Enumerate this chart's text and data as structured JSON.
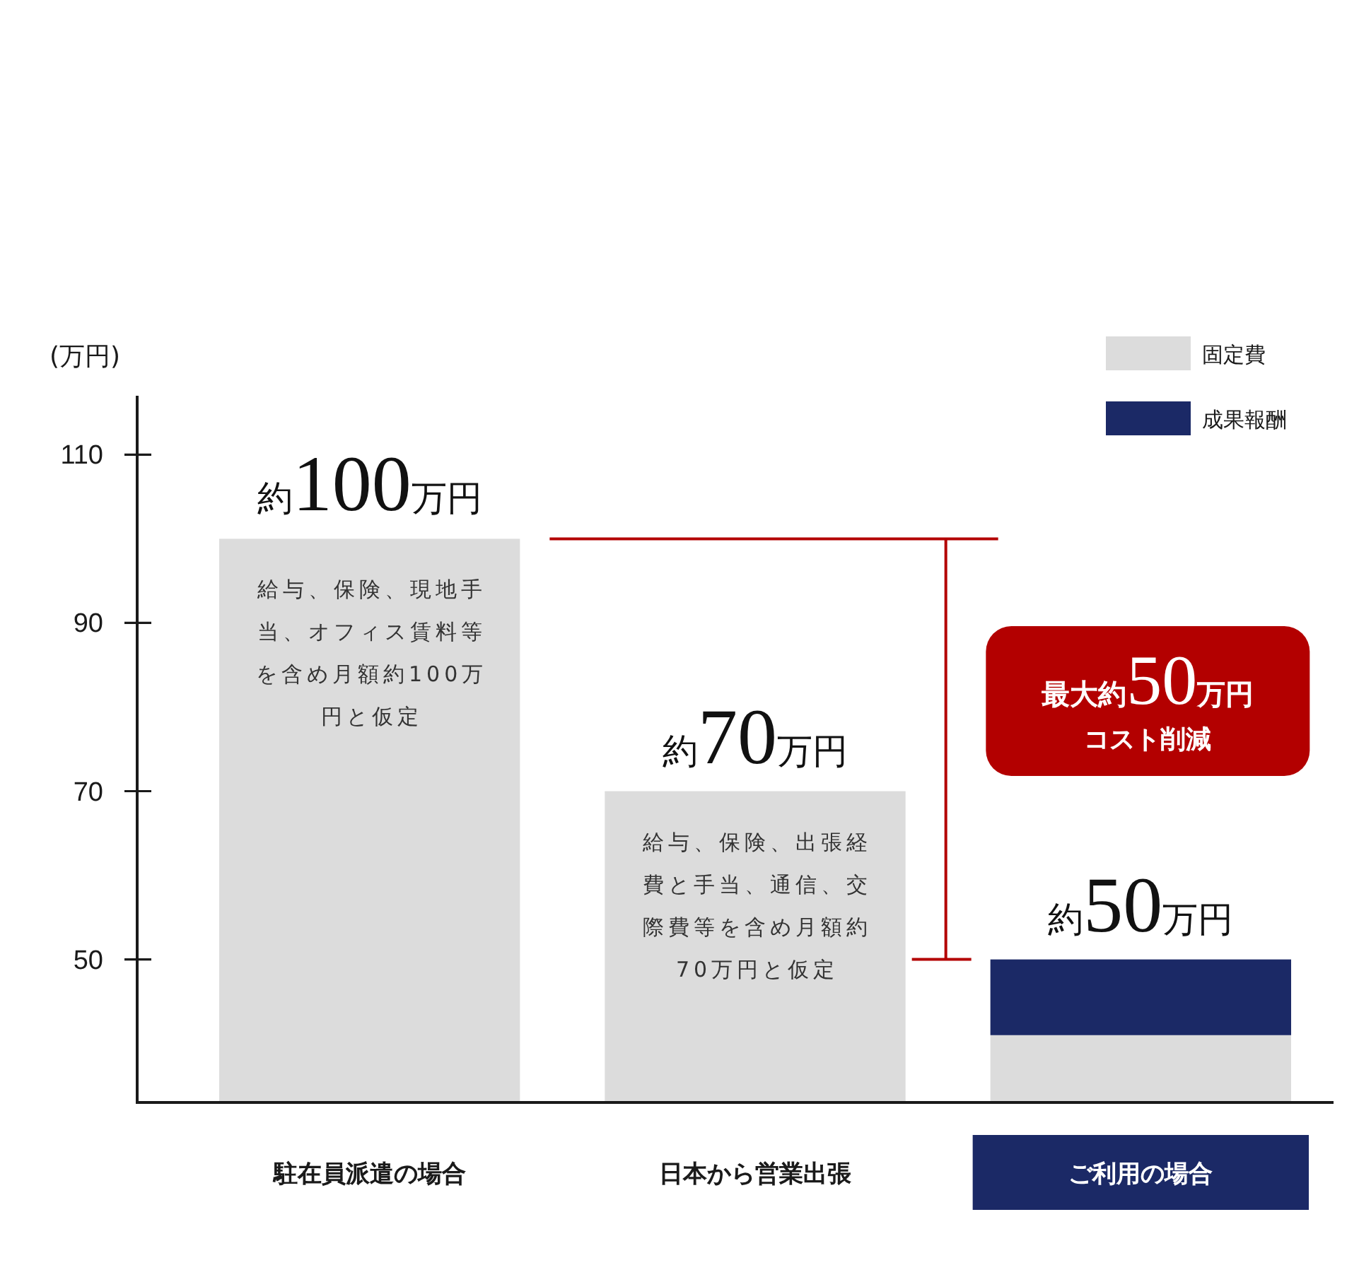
{
  "chart_data": {
    "type": "bar",
    "ylabel": "(万円)",
    "categories": [
      "駐在員派遣の場合",
      "日本から営業出張",
      "ご利用の場合"
    ],
    "series": [
      {
        "name": "固定費",
        "color": "#dcdcdc",
        "values": [
          100,
          70,
          41
        ]
      },
      {
        "name": "成果報酬",
        "color": "#1b2966",
        "values": [
          null,
          null,
          9
        ],
        "base": [
          null,
          null,
          41
        ]
      }
    ],
    "ylim": [
      33,
      117
    ],
    "yticks": [
      50,
      70,
      90,
      110
    ],
    "totals": [
      "約100万円",
      "約70万円",
      "約50万円"
    ],
    "annotations": [
      "給与、保険、現地手当、オフィス賃料等を含め月額約100万円と仮定",
      "給与、保険、出張経費と手当、通信、交際費等を含め月額約70万円と仮定",
      "最大約50万円",
      "コスト削減"
    ],
    "legend": "top right"
  }
}
